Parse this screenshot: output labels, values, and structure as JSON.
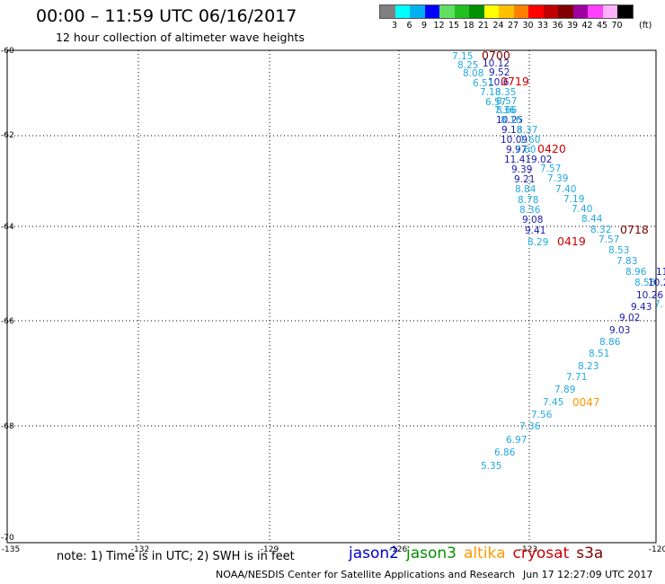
{
  "header": {
    "title": "00:00 – 11:59 UTC 06/16/2017",
    "subtitle": "12 hour collection of altimeter wave heights"
  },
  "legend": {
    "unit": "(ft)",
    "colors": [
      "#808080",
      "#00ffff",
      "#00b0f0",
      "#0000ff",
      "#60e060",
      "#20c020",
      "#009000",
      "#ffff00",
      "#ffc000",
      "#ff8000",
      "#ff0000",
      "#c00000",
      "#800000",
      "#a000a0",
      "#ff40ff",
      "#ffb0ff",
      "#000000"
    ],
    "labels": [
      "3",
      "6",
      "9",
      "12",
      "15",
      "18",
      "21",
      "24",
      "27",
      "30",
      "33",
      "36",
      "39",
      "42",
      "45",
      "70"
    ]
  },
  "axes": {
    "lon_labels": [
      "-135",
      "-132",
      "-129",
      "-126",
      "-123",
      "-120"
    ],
    "lat_labels": [
      "-60",
      "-62",
      "-64",
      "-66",
      "-68",
      "-70"
    ]
  },
  "colors": {
    "jason2": "#0000cc",
    "jason3": "#009000",
    "altika": "#ff9900",
    "cryosat": "#cc0000",
    "s3a": "#800000",
    "light": "#22aadd",
    "dark": "#1a1aaa"
  },
  "points": [
    {
      "t": "7.15",
      "c": "light"
    },
    {
      "t": "0700",
      "c": "s3a"
    },
    {
      "t": "10.12",
      "c": "dark"
    },
    {
      "t": "8.25",
      "c": "light"
    },
    {
      "t": "9.52",
      "c": "dark"
    },
    {
      "t": "8.08",
      "c": "light"
    },
    {
      "t": "10.6",
      "c": "dark"
    },
    {
      "t": "0719",
      "c": "cryosat"
    },
    {
      "t": "6.51",
      "c": "light"
    },
    {
      "t": "7.18",
      "c": "light"
    },
    {
      "t": "8.35",
      "c": "light"
    },
    {
      "t": "6.57",
      "c": "light"
    },
    {
      "t": "8.57",
      "c": "light"
    },
    {
      "t": "7.36",
      "c": "light"
    },
    {
      "t": "8.66",
      "c": "light"
    },
    {
      "t": "10.25",
      "c": "dark"
    },
    {
      "t": "8.16",
      "c": "light"
    },
    {
      "t": "9.18",
      "c": "dark"
    },
    {
      "t": "8.37",
      "c": "light"
    },
    {
      "t": "10.09",
      "c": "dark"
    },
    {
      "t": "7.60",
      "c": "light"
    },
    {
      "t": "9.97",
      "c": "dark"
    },
    {
      "t": "7.60",
      "c": "light"
    },
    {
      "t": "0420",
      "c": "cryosat"
    },
    {
      "t": "11.41",
      "c": "dark"
    },
    {
      "t": "9.02",
      "c": "dark"
    },
    {
      "t": "7.57",
      "c": "light"
    },
    {
      "t": "9.39",
      "c": "dark"
    },
    {
      "t": "7.39",
      "c": "light"
    },
    {
      "t": "9.21",
      "c": "dark"
    },
    {
      "t": "7.40",
      "c": "light"
    },
    {
      "t": "8.84",
      "c": "light"
    },
    {
      "t": "7.19",
      "c": "light"
    },
    {
      "t": "8.78",
      "c": "light"
    },
    {
      "t": "7.40",
      "c": "light"
    },
    {
      "t": "8.36",
      "c": "light"
    },
    {
      "t": "8.44",
      "c": "light"
    },
    {
      "t": "9.08",
      "c": "dark"
    },
    {
      "t": "8.32",
      "c": "light"
    },
    {
      "t": "0718",
      "c": "s3a"
    },
    {
      "t": "9.41",
      "c": "dark"
    },
    {
      "t": "7.57",
      "c": "light"
    },
    {
      "t": "8.29",
      "c": "light"
    },
    {
      "t": "0419",
      "c": "cryosat"
    },
    {
      "t": "8.53",
      "c": "light"
    },
    {
      "t": "7.83",
      "c": "light"
    },
    {
      "t": "8.96",
      "c": "light"
    },
    {
      "t": "11",
      "c": "dark"
    },
    {
      "t": "8.58",
      "c": "light"
    },
    {
      "t": "10.2",
      "c": "dark"
    },
    {
      "t": "10.26",
      "c": "dark"
    },
    {
      "t": "7.",
      "c": "light"
    },
    {
      "t": "9.43",
      "c": "dark"
    },
    {
      "t": "9.02",
      "c": "dark"
    },
    {
      "t": "9.03",
      "c": "dark"
    },
    {
      "t": "8.86",
      "c": "light"
    },
    {
      "t": "8.51",
      "c": "light"
    },
    {
      "t": "8.23",
      "c": "light"
    },
    {
      "t": "7.71",
      "c": "light"
    },
    {
      "t": "7.89",
      "c": "light"
    },
    {
      "t": "7.45",
      "c": "light"
    },
    {
      "t": "0047",
      "c": "altika"
    },
    {
      "t": "7.56",
      "c": "light"
    },
    {
      "t": "7.36",
      "c": "light"
    },
    {
      "t": "6.97",
      "c": "light"
    },
    {
      "t": "6.86",
      "c": "light"
    },
    {
      "t": "5.35",
      "c": "light"
    }
  ],
  "note": "note: 1) Time is in UTC; 2) SWH is in feet",
  "satellites": [
    "jason2",
    "jason3",
    "altika",
    "cryosat",
    "s3a"
  ],
  "footer": {
    "credit": "NOAA/NESDIS Center for Satellite Applications and Research",
    "timestamp": "Jun 17 12:27:09 UTC 2017"
  }
}
